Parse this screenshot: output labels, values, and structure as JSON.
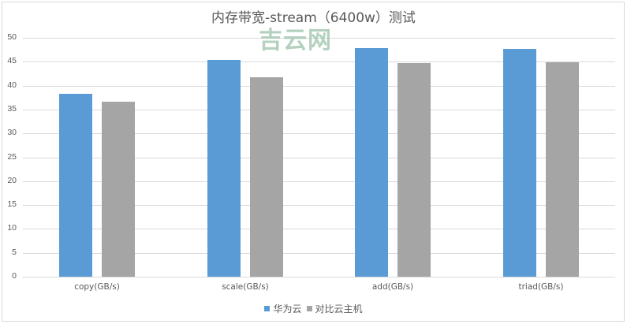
{
  "chart_data": {
    "type": "bar",
    "title": "内存带宽-stream（6400w）测试",
    "xlabel": "",
    "ylabel": "",
    "categories": [
      "copy(GB/s)",
      "scale(GB/s)",
      "add(GB/s)",
      "triad(GB/s)"
    ],
    "series": [
      {
        "name": "华为云",
        "color": "#5b9bd5",
        "values": [
          38.3,
          45.4,
          47.9,
          47.7
        ]
      },
      {
        "name": "对比云主机",
        "color": "#a5a5a5",
        "values": [
          36.6,
          41.7,
          44.8,
          44.9
        ]
      }
    ],
    "ylim": [
      0,
      50
    ],
    "yticks": [
      0,
      5,
      10,
      15,
      20,
      25,
      30,
      35,
      40,
      45,
      50
    ],
    "grid": true,
    "legend_position": "bottom"
  },
  "watermark": "吉云网",
  "colors": {
    "text": "#595959",
    "grid": "#d9d9d9",
    "watermark": "#a8c9b4"
  }
}
